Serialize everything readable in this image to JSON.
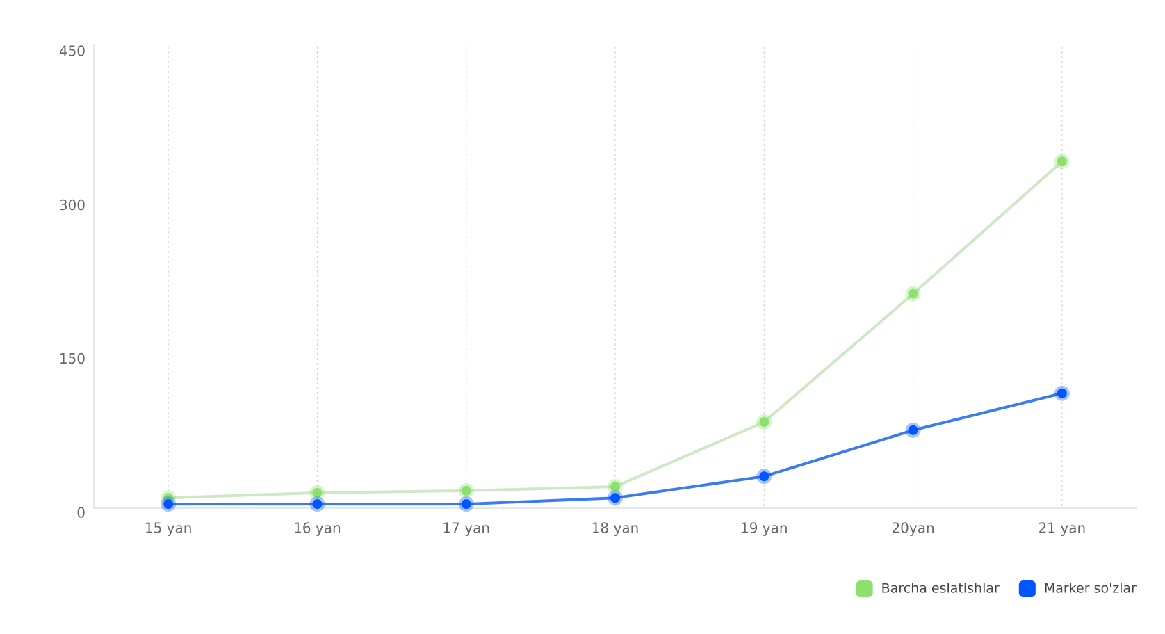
{
  "chart_data": {
    "type": "line",
    "categories": [
      "15 yan",
      "16 yan",
      "17 yan",
      "18 yan",
      "19 yan",
      "20yan",
      "21 yan"
    ],
    "series": [
      {
        "name": "Barcha eslatishlar",
        "color": "#8de070",
        "line_color": "#cde8c4",
        "values": [
          10,
          15,
          17,
          21,
          84,
          209,
          338
        ]
      },
      {
        "name": "Marker so'zlar",
        "color": "#0055ff",
        "line_color": "#3a7cf0",
        "values": [
          4,
          4,
          4,
          10,
          31,
          76,
          112
        ]
      }
    ],
    "ylim": [
      0,
      450
    ],
    "yticks": [
      0,
      150,
      300,
      450
    ],
    "grid": true
  }
}
